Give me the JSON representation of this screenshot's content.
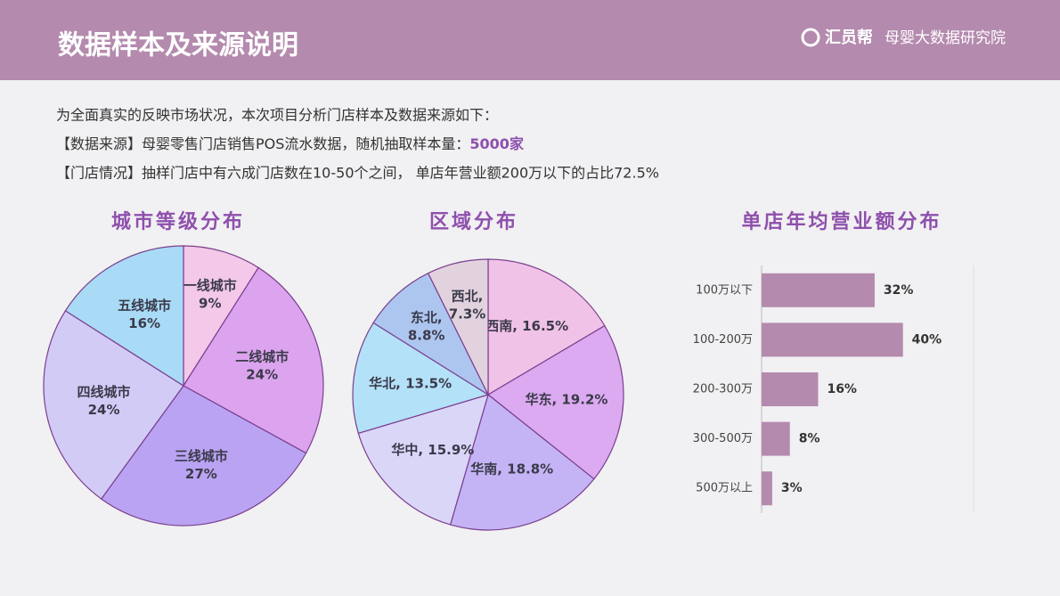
{
  "header": {
    "title": "数据样本及来源说明",
    "brand": "汇员帮",
    "brand_sub": "母婴大数据研究院"
  },
  "intro": {
    "line1": "为全面真实的反映市场状况，本次项目分析门店样本及数据来源如下：",
    "line2": "【数据来源】母婴零售门店销售POS流水数据，随机抽取样本量：",
    "line2_highlight": "5000家",
    "line3": "【门店情况】抽样门店中有六成门店数在10-50个之间，  单店年营业额200万以下的占比72.5%"
  },
  "chart_data": [
    {
      "type": "pie",
      "title": "城市等级分布",
      "categories": [
        "一线城市",
        "二线城市",
        "三线城市",
        "四线城市",
        "五线城市"
      ],
      "values": [
        9,
        24,
        27,
        24,
        16
      ],
      "value_labels": [
        "9%",
        "24%",
        "27%",
        "24%",
        "16%"
      ],
      "colors": [
        "#f3c8e8",
        "#dca4ee",
        "#b9a3f2",
        "#d2cbf6",
        "#a9daf6"
      ]
    },
    {
      "type": "pie",
      "title": "区域分布",
      "values": [
        16.5,
        19.2,
        18.8,
        15.9,
        13.5,
        8.8,
        7.3
      ],
      "value_labels": [
        "西南, 16.5%",
        "华东, 19.2%",
        "华南, 18.8%",
        "华中, 15.9%",
        "华北, 13.5%",
        "东北, 8.8%",
        "西北, 7.3%"
      ],
      "colors": [
        "#f1c2e7",
        "#dcaaf0",
        "#c4b4f5",
        "#dad6f8",
        "#b3e1f8",
        "#adc6f0",
        "#e2d2de"
      ]
    },
    {
      "type": "hbar",
      "title": "单店年均营业额分布",
      "categories": [
        "100万以下",
        "100-200万",
        "200-300万",
        "300-500万",
        "500万以上"
      ],
      "values": [
        32,
        40,
        16,
        8,
        3
      ],
      "value_labels": [
        "32%",
        "40%",
        "16%",
        "8%",
        "3%"
      ],
      "color": "#b48aae",
      "xlim": [
        0,
        60
      ]
    }
  ]
}
